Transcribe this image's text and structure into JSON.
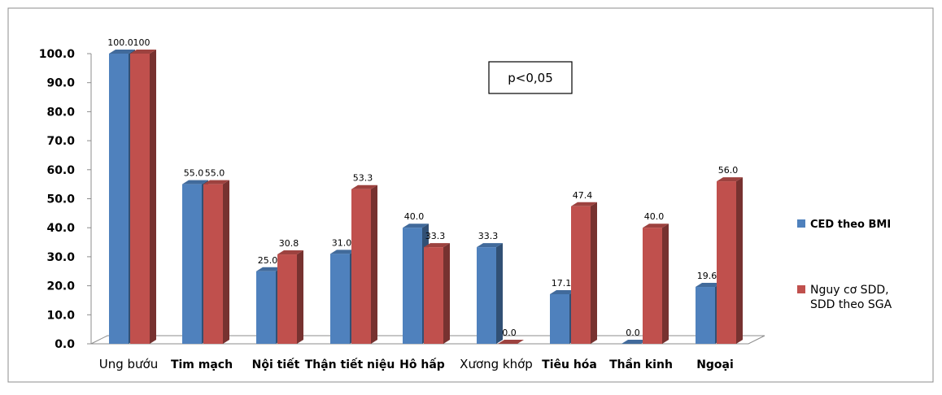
{
  "chart_data": {
    "type": "bar",
    "categories": [
      "Ung bướu",
      "Tim mạch",
      "Nội tiết",
      "Thận tiết niệu",
      "Hô hấp",
      "Xương khớp",
      "Tiêu hóa",
      "Thần kinh",
      "Ngoại"
    ],
    "series": [
      {
        "name": "CED theo BMI",
        "color": "#4f81bd",
        "values": [
          100.0,
          55.0,
          25.0,
          31.0,
          40.0,
          33.3,
          17.1,
          0.0,
          19.6
        ]
      },
      {
        "name": "Nguy cơ SDD, SDD theo SGA",
        "color": "#c0504d",
        "values": [
          100,
          55.0,
          30.8,
          53.3,
          33.3,
          0.0,
          47.4,
          40.0,
          56.0
        ]
      }
    ],
    "data_labels": [
      [
        "100.0",
        "55.0",
        "25.0",
        "31.0",
        "40.0",
        "33.3",
        "17.1",
        "0.0",
        "19.6"
      ],
      [
        "100",
        "55.0",
        "30.8",
        "53.3",
        "33.3",
        "0.0",
        "47.4",
        "40.0",
        "56.0"
      ]
    ],
    "yticks": [
      "0.0",
      "10.0",
      "20.0",
      "30.0",
      "40.0",
      "50.0",
      "60.0",
      "70.0",
      "80.0",
      "90.0",
      "100.0"
    ],
    "ylim": [
      0,
      100
    ],
    "annotation": "p<0,05",
    "legend": [
      "CED theo BMI",
      "Nguy cơ SDD,",
      "SDD theo SGA"
    ],
    "legend_position": "right",
    "grid": false
  }
}
